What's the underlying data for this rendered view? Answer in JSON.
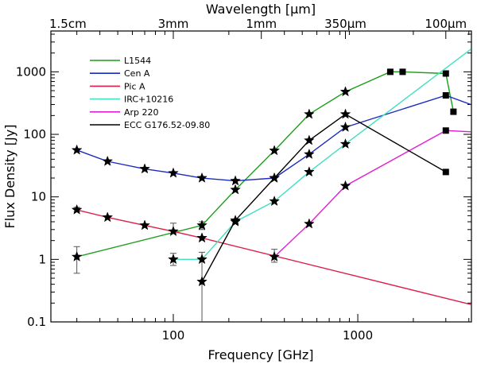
{
  "chart_data": {
    "type": "line",
    "x_scale": "log",
    "y_scale": "log",
    "xlabel": "Frequency [GHz]",
    "ylabel": "Flux Density [Jy]",
    "top_axis_label": "Wavelength [μm]",
    "xlim": [
      21.7,
      4130
    ],
    "ylim": [
      0.1,
      4500
    ],
    "x_ticks": [
      {
        "value": 100,
        "label": "100"
      },
      {
        "value": 1000,
        "label": "1000"
      }
    ],
    "y_ticks": [
      {
        "value": 0.1,
        "label": "0.1"
      },
      {
        "value": 1,
        "label": "1"
      },
      {
        "value": 10,
        "label": "10"
      },
      {
        "value": 100,
        "label": "100"
      },
      {
        "value": 1000,
        "label": "1000"
      }
    ],
    "top_ticks": [
      {
        "freq": 20,
        "label": "1.5cm"
      },
      {
        "freq": 100,
        "label": "3mm"
      },
      {
        "freq": 300,
        "label": "1mm"
      },
      {
        "freq": 857,
        "label": "350μm"
      },
      {
        "freq": 3000,
        "label": "100μm"
      }
    ],
    "series": [
      {
        "name": "L1544",
        "color": "#1a9e1a",
        "x": [
          30,
          143,
          217,
          353,
          545,
          857,
          1500,
          1750,
          3000,
          3300
        ],
        "values": [
          1.1,
          3.5,
          13,
          55,
          210,
          480,
          1000,
          1000,
          940,
          230
        ],
        "markers": [
          "star",
          "star",
          "star",
          "star",
          "star",
          "star",
          "square",
          "square",
          "square",
          "square"
        ]
      },
      {
        "name": "Cen A",
        "color": "#1a2cc0",
        "x": [
          30,
          44,
          70,
          100,
          143,
          217,
          353,
          545,
          857,
          3000,
          4100
        ],
        "values": [
          56,
          37,
          28,
          24,
          20,
          18,
          20,
          48,
          130,
          420,
          300
        ],
        "markers": [
          "star",
          "star",
          "star",
          "star",
          "star",
          "star",
          "star",
          "star",
          "star",
          "square",
          "none"
        ]
      },
      {
        "name": "Pic A",
        "color": "#dd1e4a",
        "x": [
          30,
          44,
          70,
          100,
          143,
          4100
        ],
        "values": [
          6.2,
          4.7,
          3.5,
          2.8,
          2.2,
          0.19
        ],
        "markers": [
          "star",
          "star",
          "star",
          "star",
          "star",
          "none"
        ]
      },
      {
        "name": "IRC+10216",
        "color": "#40e0c0",
        "x": [
          100,
          143,
          217,
          353,
          545,
          857,
          4100
        ],
        "values": [
          1.0,
          1.0,
          4.0,
          8.5,
          25,
          70,
          2300
        ],
        "markers": [
          "star",
          "star",
          "star",
          "star",
          "star",
          "star",
          "none"
        ]
      },
      {
        "name": "Arp 220",
        "color": "#e020d0",
        "x": [
          353,
          545,
          857,
          3000,
          4100
        ],
        "values": [
          1.1,
          3.7,
          15,
          115,
          110
        ],
        "markers": [
          "star",
          "star",
          "star",
          "square",
          "none"
        ]
      },
      {
        "name": "ECC G176.52-09.80",
        "color": "#000000",
        "x": [
          143,
          217,
          353,
          545,
          857,
          3000
        ],
        "values": [
          0.44,
          4.2,
          20,
          80,
          210,
          25
        ],
        "markers": [
          "star",
          "star",
          "star",
          "star",
          "star",
          "square"
        ]
      }
    ],
    "error_bars": [
      {
        "x": 30,
        "low": 0.6,
        "high": 1.6
      },
      {
        "x": 30,
        "low": 5.8,
        "high": 6.8
      },
      {
        "x": 100,
        "low": 2.6,
        "high": 3.8
      },
      {
        "x": 100,
        "low": 0.8,
        "high": 1.25
      },
      {
        "x": 143,
        "low": 0.1,
        "high": 1.3
      },
      {
        "x": 143,
        "low": 3.0,
        "high": 4.0
      },
      {
        "x": 353,
        "low": 0.9,
        "high": 1.45
      }
    ],
    "legend_position": "top-left"
  }
}
